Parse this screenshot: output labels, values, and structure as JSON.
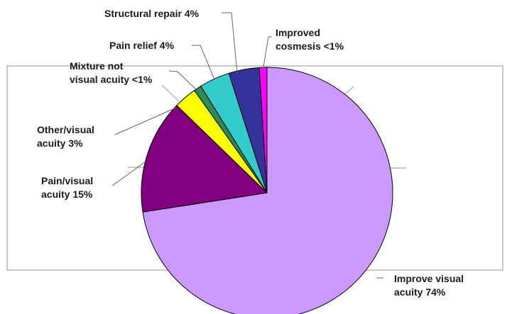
{
  "chart_data": {
    "type": "pie",
    "slices": [
      {
        "label": "Improve visual acuity",
        "value_label": "74%",
        "value": 74,
        "color": "#cc99ff",
        "text_lines": [
          "Improve visual",
          "acuity 74%"
        ]
      },
      {
        "label": "Pain/visual acuity",
        "value_label": "15%",
        "value": 15,
        "color": "#800080",
        "text_lines": [
          "Pain/visual",
          "acuity 15%"
        ]
      },
      {
        "label": "Other/visual acuity",
        "value_label": "3%",
        "value": 3,
        "color": "#ffff00",
        "text_lines": [
          "Other/visual",
          "acuity 3%"
        ]
      },
      {
        "label": "Mixture not visual acuity",
        "value_label": "<1%",
        "value": 1,
        "color": "#2e8b57",
        "text_lines": [
          "Mixture not",
          "visual acuity <1%"
        ]
      },
      {
        "label": "Pain relief",
        "value_label": "4%",
        "value": 4,
        "color": "#33cccc",
        "text_lines": [
          "Pain relief 4%"
        ]
      },
      {
        "label": "Structural repair",
        "value_label": "4%",
        "value": 4,
        "color": "#333399",
        "text_lines": [
          "Structural repair 4%"
        ]
      },
      {
        "label": "Improved cosmesis",
        "value_label": "<1%",
        "value": 1,
        "color": "#ff00ff",
        "text_lines": [
          "Improved",
          "cosmesis <1%"
        ]
      }
    ],
    "start_angle_deg": 0,
    "direction": "clockwise"
  }
}
